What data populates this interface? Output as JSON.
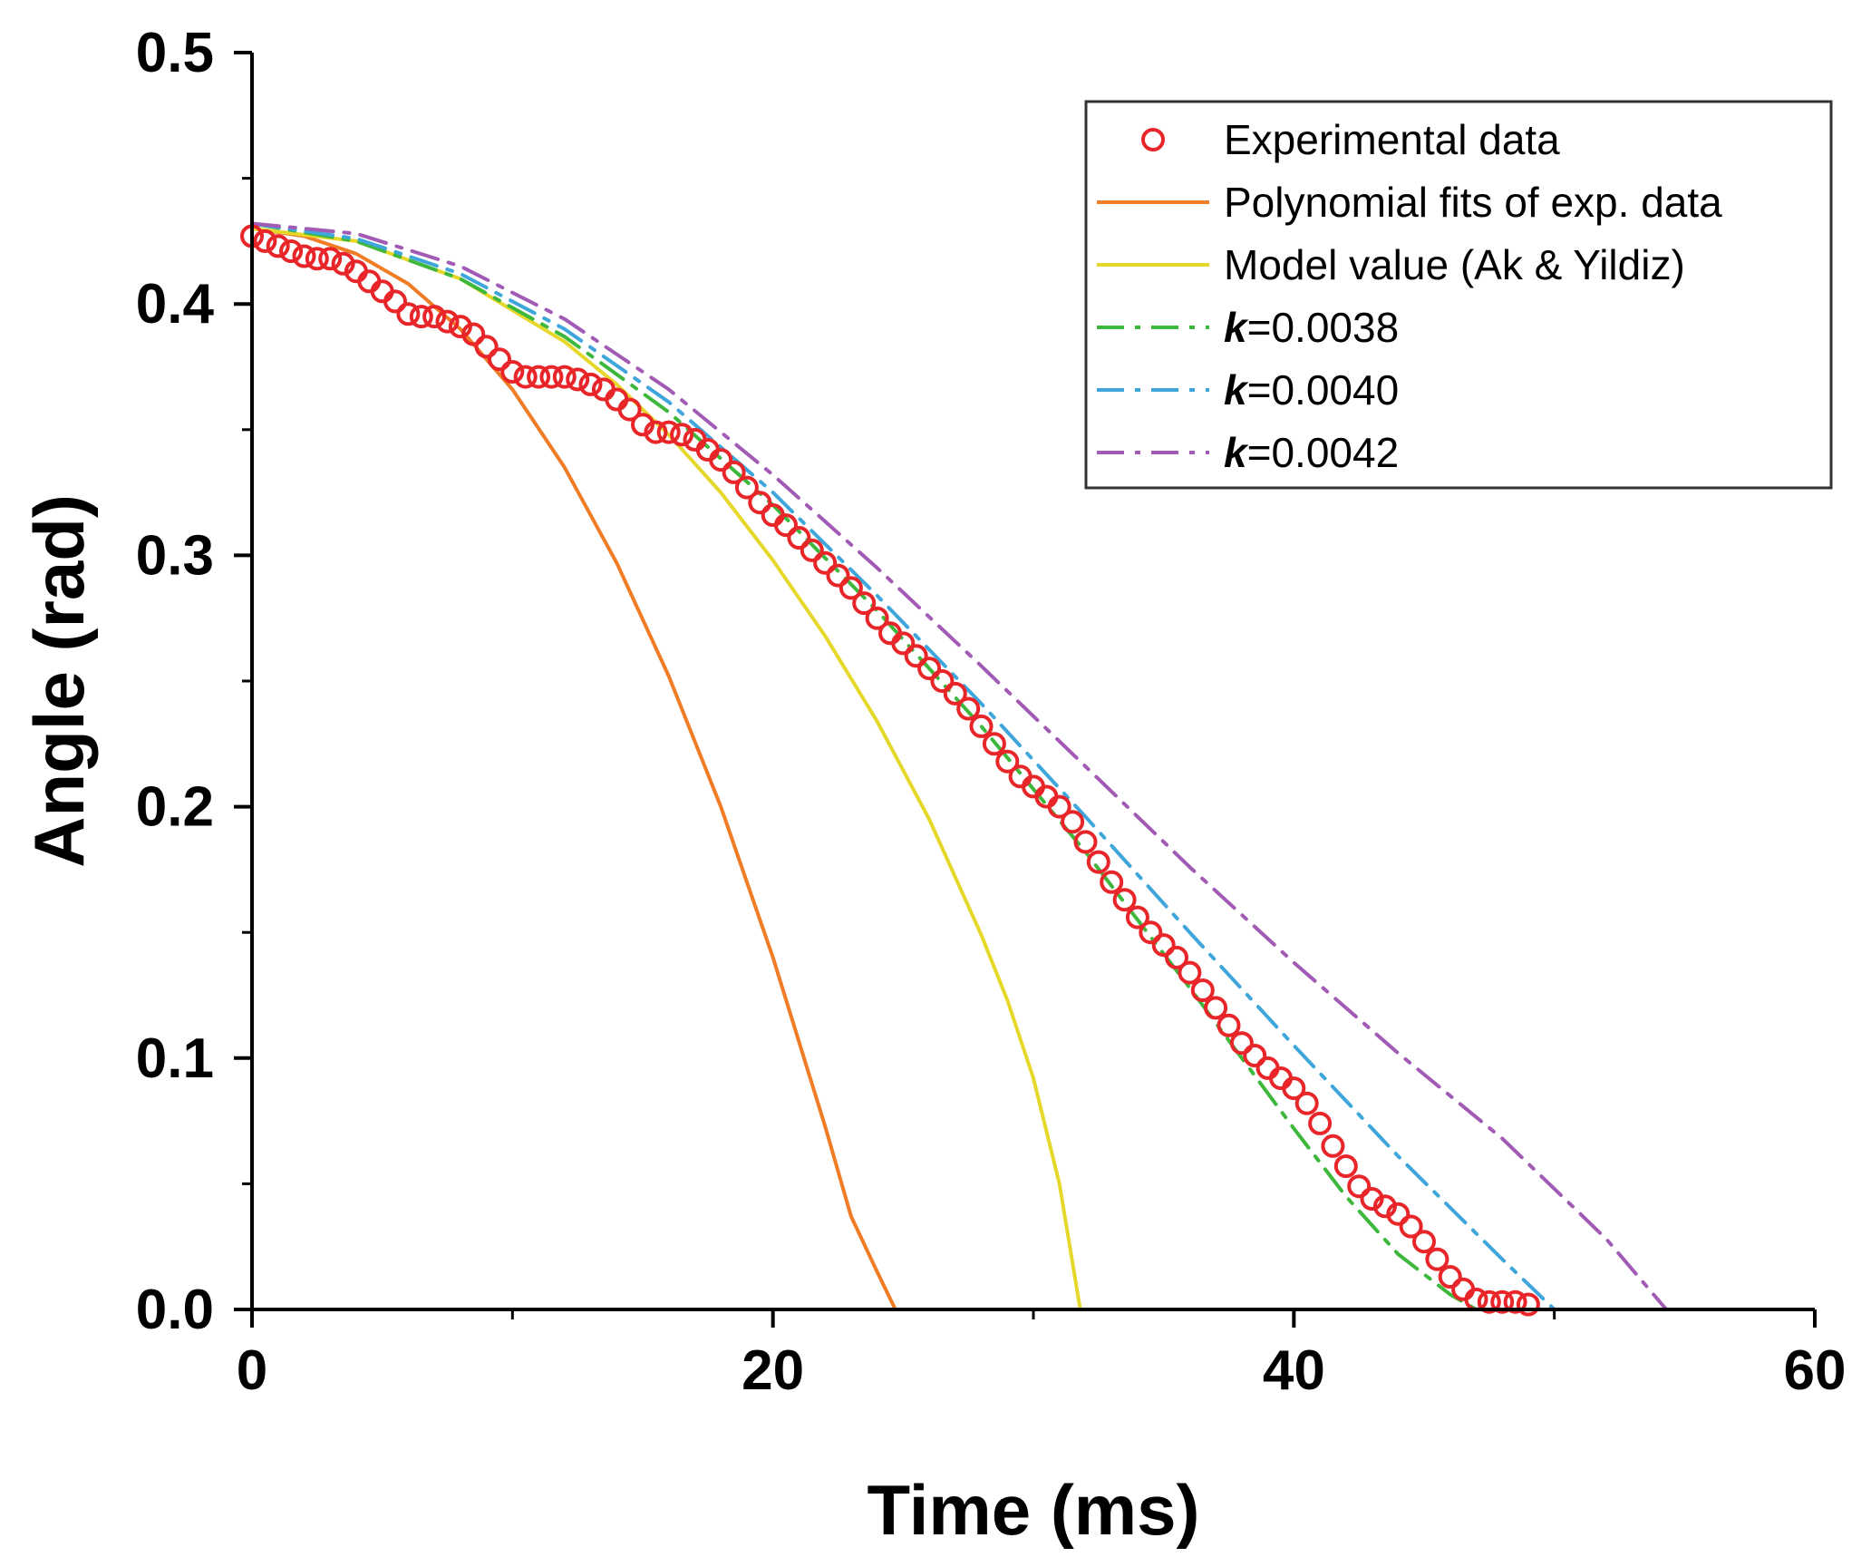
{
  "chart_data": {
    "type": "line",
    "title": "",
    "xlabel": "Time (ms)",
    "ylabel": "Angle (rad)",
    "xlim": [
      0,
      60
    ],
    "ylim": [
      0,
      0.5
    ],
    "x_ticks": [
      0,
      20,
      40,
      60
    ],
    "x_tick_labels": [
      "0",
      "20",
      "40",
      "60"
    ],
    "y_ticks": [
      0.0,
      0.1,
      0.2,
      0.3,
      0.4,
      0.5
    ],
    "y_tick_labels": [
      "0.0",
      "0.1",
      "0.2",
      "0.3",
      "0.4",
      "0.5"
    ],
    "grid": false,
    "legend_position": "top-right",
    "series": [
      {
        "name": "Experimental data",
        "style": "markers-open-circle",
        "color": "#e8262a",
        "x": [
          0.0,
          0.5,
          1.0,
          1.5,
          2.0,
          2.5,
          3.0,
          3.5,
          4.0,
          4.5,
          5.0,
          5.5,
          6.0,
          6.5,
          7.0,
          7.5,
          8.0,
          8.5,
          9.0,
          9.5,
          10.0,
          10.5,
          11.0,
          11.5,
          12.0,
          12.5,
          13.0,
          13.5,
          14.0,
          14.5,
          15.0,
          15.5,
          16.0,
          16.5,
          17.0,
          17.5,
          18.0,
          18.5,
          19.0,
          19.5,
          20.0,
          20.5,
          21.0,
          21.5,
          22.0,
          22.5,
          23.0,
          23.5,
          24.0,
          24.5,
          25.0,
          25.5,
          26.0,
          26.5,
          27.0,
          27.5,
          28.0,
          28.5,
          29.0,
          29.5,
          30.0,
          30.5,
          31.0,
          31.5,
          32.0,
          32.5,
          33.0,
          33.5,
          34.0,
          34.5,
          35.0,
          35.5,
          36.0,
          36.5,
          37.0,
          37.5,
          38.0,
          38.5,
          39.0,
          39.5,
          40.0,
          40.5,
          41.0,
          41.5,
          42.0,
          42.5,
          43.0,
          43.5,
          44.0,
          44.5,
          45.0,
          45.5,
          46.0,
          46.5,
          47.0,
          47.5,
          48.0,
          48.5,
          49.0
        ],
        "y": [
          0.427,
          0.425,
          0.423,
          0.421,
          0.419,
          0.418,
          0.418,
          0.416,
          0.413,
          0.409,
          0.405,
          0.401,
          0.396,
          0.395,
          0.395,
          0.393,
          0.391,
          0.388,
          0.383,
          0.378,
          0.373,
          0.371,
          0.371,
          0.371,
          0.371,
          0.37,
          0.368,
          0.366,
          0.362,
          0.358,
          0.352,
          0.349,
          0.349,
          0.348,
          0.346,
          0.342,
          0.338,
          0.333,
          0.327,
          0.321,
          0.316,
          0.312,
          0.307,
          0.302,
          0.297,
          0.292,
          0.287,
          0.281,
          0.275,
          0.269,
          0.265,
          0.26,
          0.255,
          0.25,
          0.245,
          0.239,
          0.232,
          0.225,
          0.218,
          0.212,
          0.208,
          0.204,
          0.2,
          0.194,
          0.186,
          0.178,
          0.17,
          0.163,
          0.156,
          0.15,
          0.145,
          0.14,
          0.134,
          0.127,
          0.12,
          0.113,
          0.106,
          0.101,
          0.096,
          0.092,
          0.088,
          0.082,
          0.074,
          0.065,
          0.057,
          0.049,
          0.044,
          0.041,
          0.038,
          0.033,
          0.027,
          0.02,
          0.013,
          0.008,
          0.004,
          0.003,
          0.003,
          0.003,
          0.002
        ]
      },
      {
        "name": "Polynomial fits of exp. data",
        "style": "solid",
        "color": "#f07c26",
        "x": [
          0,
          2,
          4,
          6,
          8,
          10,
          12,
          14,
          16,
          18,
          20,
          22,
          23,
          24,
          24.7
        ],
        "y": [
          0.43,
          0.427,
          0.42,
          0.408,
          0.39,
          0.366,
          0.335,
          0.297,
          0.252,
          0.2,
          0.14,
          0.073,
          0.037,
          0.015,
          0.0
        ]
      },
      {
        "name": "Model value (Ak & Yildiz)",
        "style": "solid",
        "color": "#e5d82a",
        "x": [
          0,
          4,
          8,
          12,
          14,
          16,
          18,
          20,
          22,
          24,
          26,
          28,
          29,
          30,
          31,
          31.8
        ],
        "y": [
          0.43,
          0.425,
          0.41,
          0.385,
          0.368,
          0.348,
          0.325,
          0.298,
          0.268,
          0.234,
          0.195,
          0.149,
          0.123,
          0.092,
          0.05,
          0.0
        ]
      },
      {
        "name": "k=0.0038",
        "legend_k": "k",
        "legend_value": "=0.0038",
        "style": "dash-dot",
        "color": "#3db83d",
        "x": [
          0,
          4,
          8,
          12,
          16,
          20,
          24,
          28,
          32,
          36,
          40,
          42,
          44,
          46,
          47.0
        ],
        "y": [
          0.432,
          0.425,
          0.41,
          0.387,
          0.357,
          0.32,
          0.278,
          0.232,
          0.182,
          0.128,
          0.072,
          0.045,
          0.022,
          0.006,
          0.0
        ]
      },
      {
        "name": "k=0.0040",
        "legend_k": "k",
        "legend_value": "=0.0040",
        "style": "dash-dot",
        "color": "#3ea6da",
        "x": [
          0,
          4,
          8,
          12,
          16,
          20,
          24,
          28,
          32,
          36,
          40,
          44,
          48,
          50.0
        ],
        "y": [
          0.432,
          0.426,
          0.412,
          0.39,
          0.361,
          0.325,
          0.284,
          0.241,
          0.196,
          0.15,
          0.105,
          0.061,
          0.02,
          0.0
        ]
      },
      {
        "name": "k=0.0042",
        "legend_k": "k",
        "legend_value": "=0.0042",
        "style": "dash-dot",
        "color": "#a25bb5",
        "x": [
          0,
          4,
          8,
          12,
          16,
          20,
          24,
          28,
          32,
          36,
          40,
          44,
          48,
          52,
          54.3
        ],
        "y": [
          0.432,
          0.428,
          0.415,
          0.394,
          0.366,
          0.332,
          0.295,
          0.256,
          0.216,
          0.176,
          0.138,
          0.102,
          0.068,
          0.028,
          0.0
        ]
      }
    ]
  }
}
